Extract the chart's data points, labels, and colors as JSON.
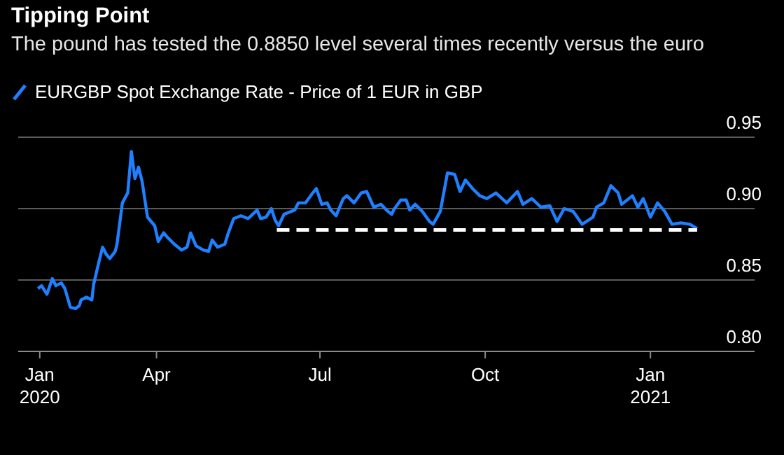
{
  "chart_data": {
    "type": "line",
    "title": "Tipping Point",
    "subtitle": "The pound has tested the 0.8850 level several times recently versus the euro",
    "legend": "top left",
    "grid": "y",
    "tick_labels": true,
    "marker": "none",
    "xlim": [
      "2020-01-15",
      "2021-02-28"
    ],
    "xticks": [
      {
        "value": "2020-01-27",
        "label": "Jan\n2020"
      },
      {
        "value": "2020-04-01",
        "label": "Apr"
      },
      {
        "value": "2020-07-01",
        "label": "Jul"
      },
      {
        "value": "2020-10-01",
        "label": "Oct"
      },
      {
        "value": "2021-01-01",
        "label": "Jan\n2021"
      }
    ],
    "ylim": [
      0.8,
      0.95
    ],
    "yticks": [
      {
        "value": 0.8,
        "label": "0.80"
      },
      {
        "value": 0.85,
        "label": "0.85"
      },
      {
        "value": 0.9,
        "label": "0.90"
      },
      {
        "value": 0.95,
        "label": "0.95"
      }
    ],
    "series": [
      {
        "name": "EURGBP Spot Exchange Rate - Price of 1 EUR in GBP",
        "color": "#1f80ff",
        "line_style": "solid",
        "x": [
          "2020-01-26",
          "2020-01-28",
          "2020-01-31",
          "2020-02-03",
          "2020-02-05",
          "2020-02-08",
          "2020-02-10",
          "2020-02-13",
          "2020-02-16",
          "2020-02-18",
          "2020-02-19",
          "2020-02-22",
          "2020-02-25",
          "2020-02-26",
          "2020-02-29",
          "2020-03-02",
          "2020-03-04",
          "2020-03-06",
          "2020-03-09",
          "2020-03-10",
          "2020-03-13",
          "2020-03-16",
          "2020-03-18",
          "2020-03-20",
          "2020-03-22",
          "2020-03-24",
          "2020-03-27",
          "2020-03-31",
          "2020-04-02",
          "2020-04-05",
          "2020-04-07",
          "2020-04-11",
          "2020-04-15",
          "2020-04-18",
          "2020-04-20",
          "2020-04-23",
          "2020-04-27",
          "2020-04-30",
          "2020-05-02",
          "2020-05-05",
          "2020-05-09",
          "2020-05-11",
          "2020-05-14",
          "2020-05-18",
          "2020-05-22",
          "2020-05-27",
          "2020-05-29",
          "2020-06-01",
          "2020-06-04",
          "2020-06-06",
          "2020-06-08",
          "2020-06-11",
          "2020-06-17",
          "2020-06-19",
          "2020-06-23",
          "2020-06-27",
          "2020-06-29",
          "2020-07-02",
          "2020-07-05",
          "2020-07-07",
          "2020-07-10",
          "2020-07-14",
          "2020-07-16",
          "2020-07-20",
          "2020-07-24",
          "2020-07-27",
          "2020-07-31",
          "2020-08-04",
          "2020-08-07",
          "2020-08-10",
          "2020-08-11",
          "2020-08-15",
          "2020-08-18",
          "2020-08-20",
          "2020-08-23",
          "2020-08-27",
          "2020-08-31",
          "2020-09-02",
          "2020-09-06",
          "2020-09-10",
          "2020-09-14",
          "2020-09-17",
          "2020-09-20",
          "2020-09-24",
          "2020-09-28",
          "2020-10-02",
          "2020-10-07",
          "2020-10-13",
          "2020-10-19",
          "2020-10-22",
          "2020-10-27",
          "2020-11-01",
          "2020-11-06",
          "2020-11-10",
          "2020-11-14",
          "2020-11-19",
          "2020-11-24",
          "2020-11-30",
          "2020-12-02",
          "2020-12-06",
          "2020-12-10",
          "2020-12-14",
          "2020-12-16",
          "2020-12-22",
          "2020-12-25",
          "2020-12-28",
          "2021-01-01",
          "2021-01-05",
          "2021-01-09",
          "2021-01-13",
          "2021-01-18",
          "2021-01-23",
          "2021-01-27"
        ],
        "values": [
          0.844,
          0.846,
          0.84,
          0.851,
          0.846,
          0.848,
          0.844,
          0.831,
          0.83,
          0.832,
          0.836,
          0.838,
          0.836,
          0.847,
          0.863,
          0.873,
          0.868,
          0.865,
          0.87,
          0.875,
          0.904,
          0.911,
          0.94,
          0.921,
          0.929,
          0.919,
          0.894,
          0.888,
          0.877,
          0.883,
          0.88,
          0.875,
          0.871,
          0.873,
          0.883,
          0.874,
          0.871,
          0.87,
          0.878,
          0.873,
          0.875,
          0.883,
          0.893,
          0.895,
          0.893,
          0.899,
          0.893,
          0.894,
          0.9,
          0.892,
          0.888,
          0.896,
          0.899,
          0.904,
          0.904,
          0.911,
          0.914,
          0.903,
          0.904,
          0.899,
          0.895,
          0.907,
          0.909,
          0.904,
          0.911,
          0.912,
          0.901,
          0.903,
          0.899,
          0.896,
          0.899,
          0.906,
          0.906,
          0.899,
          0.903,
          0.898,
          0.891,
          0.889,
          0.898,
          0.925,
          0.924,
          0.912,
          0.92,
          0.914,
          0.909,
          0.907,
          0.911,
          0.904,
          0.912,
          0.903,
          0.907,
          0.901,
          0.902,
          0.891,
          0.9,
          0.898,
          0.889,
          0.894,
          0.901,
          0.904,
          0.916,
          0.911,
          0.903,
          0.909,
          0.901,
          0.907,
          0.894,
          0.904,
          0.898,
          0.889,
          0.89,
          0.889,
          0.886
        ]
      },
      {
        "type": "line",
        "color": "#ffffff",
        "line_style": "dashed",
        "x": [
          "2020-06-07",
          "2021-01-27"
        ],
        "values": [
          0.885,
          0.885
        ]
      }
    ]
  }
}
